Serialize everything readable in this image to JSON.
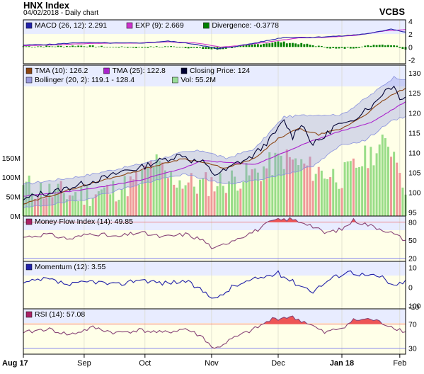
{
  "header": {
    "title": "HNX Index",
    "subtitle": "04/02/2018 - Daily chart",
    "brand": "VCBS"
  },
  "x_axis": {
    "labels": [
      "Aug 17",
      "Sep",
      "Oct",
      "Nov",
      "Dec",
      "Jan 18",
      "Feb"
    ],
    "label_index": [
      0,
      21,
      42,
      65,
      88,
      110,
      130
    ]
  },
  "chart_data": [
    {
      "type": "line",
      "name": "macd-panel",
      "legend": [
        {
          "text": "MACD (26, 12): 2.291",
          "color": "#2222aa"
        },
        {
          "text": "EXP (9): 2.669",
          "color": "#cc33cc"
        },
        {
          "text": "Divergence: -0.3778",
          "color": "#008000"
        }
      ],
      "ylim": [
        -2.6,
        4.2
      ],
      "yticks": [
        "4",
        "2",
        "0",
        "-2"
      ],
      "ytick_values": [
        4,
        2,
        0,
        -2
      ],
      "key_points_macd": [
        [
          0,
          0.3
        ],
        [
          10,
          0.4
        ],
        [
          20,
          0.7
        ],
        [
          30,
          0.6
        ],
        [
          40,
          0.6
        ],
        [
          50,
          0.9
        ],
        [
          60,
          0.4
        ],
        [
          67,
          -0.3
        ],
        [
          72,
          0.0
        ],
        [
          80,
          0.6
        ],
        [
          90,
          1.5
        ],
        [
          100,
          1.5
        ],
        [
          110,
          1.7
        ],
        [
          120,
          2.1
        ],
        [
          127,
          2.8
        ],
        [
          132,
          2.3
        ]
      ],
      "key_points_signal": [
        [
          0,
          0.2
        ],
        [
          10,
          0.3
        ],
        [
          20,
          0.5
        ],
        [
          30,
          0.6
        ],
        [
          40,
          0.6
        ],
        [
          50,
          0.8
        ],
        [
          60,
          0.6
        ],
        [
          68,
          0.0
        ],
        [
          75,
          0.2
        ],
        [
          85,
          0.8
        ],
        [
          95,
          1.4
        ],
        [
          105,
          1.5
        ],
        [
          115,
          1.8
        ],
        [
          125,
          2.5
        ],
        [
          132,
          2.7
        ]
      ],
      "key_points_divergence": [
        [
          0,
          0.1
        ],
        [
          10,
          0.1
        ],
        [
          20,
          0.2
        ],
        [
          30,
          0.0
        ],
        [
          40,
          -0.1
        ],
        [
          50,
          0.1
        ],
        [
          60,
          -0.2
        ],
        [
          67,
          -0.4
        ],
        [
          75,
          0.1
        ],
        [
          88,
          0.8
        ],
        [
          98,
          0.4
        ],
        [
          108,
          -0.3
        ],
        [
          115,
          -0.1
        ],
        [
          122,
          0.4
        ],
        [
          128,
          0.3
        ],
        [
          132,
          -0.4
        ]
      ]
    },
    {
      "type": "line",
      "name": "price-panel",
      "legend": [
        {
          "text": "TMA (10): 126.2",
          "color": "#8b4513"
        },
        {
          "text": "TMA (25): 122.8",
          "color": "#aa22cc"
        },
        {
          "text": "Closing Price: 124",
          "color": "#000033"
        },
        {
          "text": "Bollinger (20, 2): 119.1 - 128.4",
          "color": "#9999dd"
        },
        {
          "text": "Vol: 55.2M",
          "color": "#99dd99"
        }
      ],
      "ylim": [
        94,
        132
      ],
      "yticks": [
        "130",
        "125",
        "120",
        "115",
        "110",
        "105",
        "100",
        "95"
      ],
      "ytick_values": [
        130,
        125,
        120,
        115,
        110,
        105,
        100,
        95
      ],
      "vol_ticks": [
        "150M",
        "100M",
        "50M",
        "0M"
      ],
      "vol_tick_values": [
        150,
        100,
        50,
        0
      ],
      "vol_max": 210,
      "key_points_close": [
        [
          0,
          98
        ],
        [
          5,
          99.5
        ],
        [
          10,
          100
        ],
        [
          15,
          101
        ],
        [
          20,
          102
        ],
        [
          25,
          103
        ],
        [
          30,
          104
        ],
        [
          35,
          105.5
        ],
        [
          40,
          106
        ],
        [
          45,
          107.5
        ],
        [
          50,
          108.5
        ],
        [
          55,
          109.5
        ],
        [
          58,
          108
        ],
        [
          62,
          107.5
        ],
        [
          66,
          104.5
        ],
        [
          70,
          105.5
        ],
        [
          74,
          107.5
        ],
        [
          78,
          108.5
        ],
        [
          82,
          111
        ],
        [
          86,
          114
        ],
        [
          90,
          118
        ],
        [
          93,
          114
        ],
        [
          96,
          117.5
        ],
        [
          100,
          112
        ],
        [
          104,
          114
        ],
        [
          108,
          117
        ],
        [
          112,
          117
        ],
        [
          115,
          119
        ],
        [
          118,
          121
        ],
        [
          121,
          122
        ],
        [
          124,
          125
        ],
        [
          126,
          126.5
        ],
        [
          128,
          126.5
        ],
        [
          130,
          124
        ],
        [
          132,
          124
        ]
      ],
      "key_points_tma10": [
        [
          0,
          97
        ],
        [
          20,
          101.5
        ],
        [
          40,
          105.5
        ],
        [
          55,
          108.5
        ],
        [
          62,
          107.5
        ],
        [
          70,
          106
        ],
        [
          80,
          108.5
        ],
        [
          88,
          113.5
        ],
        [
          95,
          116
        ],
        [
          102,
          114.5
        ],
        [
          110,
          116
        ],
        [
          118,
          119.5
        ],
        [
          126,
          124
        ],
        [
          132,
          126.2
        ]
      ],
      "key_points_tma25": [
        [
          0,
          99
        ],
        [
          20,
          100.5
        ],
        [
          40,
          103
        ],
        [
          55,
          106
        ],
        [
          62,
          108
        ],
        [
          70,
          107.5
        ],
        [
          80,
          107
        ],
        [
          90,
          110
        ],
        [
          100,
          113
        ],
        [
          110,
          115.5
        ],
        [
          120,
          117.5
        ],
        [
          132,
          122.8
        ]
      ],
      "key_points_boll_upper": [
        [
          0,
          102
        ],
        [
          20,
          104
        ],
        [
          40,
          107
        ],
        [
          55,
          110
        ],
        [
          62,
          110.5
        ],
        [
          70,
          108.5
        ],
        [
          80,
          111
        ],
        [
          90,
          119
        ],
        [
          100,
          119.5
        ],
        [
          110,
          119.5
        ],
        [
          120,
          124.5
        ],
        [
          128,
          129
        ],
        [
          132,
          128.4
        ]
      ],
      "key_points_boll_lower": [
        [
          0,
          96
        ],
        [
          20,
          98
        ],
        [
          40,
          102
        ],
        [
          55,
          104.5
        ],
        [
          62,
          103.5
        ],
        [
          70,
          102
        ],
        [
          80,
          103
        ],
        [
          90,
          104.5
        ],
        [
          100,
          106.5
        ],
        [
          110,
          112
        ],
        [
          118,
          113
        ],
        [
          126,
          117.5
        ],
        [
          132,
          119.1
        ]
      ],
      "key_points_volume": [
        [
          0,
          80
        ],
        [
          10,
          60
        ],
        [
          20,
          55
        ],
        [
          30,
          65
        ],
        [
          40,
          90
        ],
        [
          45,
          140
        ],
        [
          50,
          100
        ],
        [
          60,
          80
        ],
        [
          70,
          90
        ],
        [
          80,
          110
        ],
        [
          90,
          150
        ],
        [
          100,
          120
        ],
        [
          110,
          100
        ],
        [
          120,
          160
        ],
        [
          126,
          190
        ],
        [
          130,
          140
        ],
        [
          132,
          55.2
        ]
      ]
    },
    {
      "type": "line",
      "name": "mfi-panel",
      "legend": [
        {
          "text": "Money Flow Index (14): 49.85",
          "color": "#aa2266"
        }
      ],
      "ylim": [
        15,
        90
      ],
      "yticks": [
        "80",
        "50",
        "20"
      ],
      "ytick_values": [
        80,
        50,
        20
      ],
      "bands": [
        80,
        20
      ],
      "key_points": [
        [
          0,
          55
        ],
        [
          8,
          60
        ],
        [
          16,
          52
        ],
        [
          24,
          62
        ],
        [
          32,
          55
        ],
        [
          40,
          63
        ],
        [
          48,
          55
        ],
        [
          56,
          60
        ],
        [
          62,
          50
        ],
        [
          66,
          35
        ],
        [
          72,
          50
        ],
        [
          80,
          65
        ],
        [
          86,
          82
        ],
        [
          92,
          85
        ],
        [
          98,
          78
        ],
        [
          104,
          62
        ],
        [
          110,
          68
        ],
        [
          114,
          83
        ],
        [
          120,
          74
        ],
        [
          126,
          65
        ],
        [
          132,
          49.85
        ]
      ]
    },
    {
      "type": "line",
      "name": "momentum-panel",
      "legend": [
        {
          "text": "Momentum (12): 3.55",
          "color": "#2222aa"
        }
      ],
      "ylim": [
        -11,
        13
      ],
      "yticks": [
        "10",
        "0",
        "-10"
      ],
      "ytick_values": [
        10,
        0,
        -10
      ],
      "key_points": [
        [
          0,
          2
        ],
        [
          8,
          4
        ],
        [
          16,
          1
        ],
        [
          24,
          3
        ],
        [
          32,
          1
        ],
        [
          40,
          4
        ],
        [
          48,
          2
        ],
        [
          56,
          3
        ],
        [
          62,
          -2
        ],
        [
          67,
          -6
        ],
        [
          72,
          0
        ],
        [
          80,
          4
        ],
        [
          88,
          7
        ],
        [
          94,
          2
        ],
        [
          100,
          -2
        ],
        [
          106,
          4
        ],
        [
          112,
          8
        ],
        [
          118,
          6
        ],
        [
          124,
          5
        ],
        [
          128,
          0
        ],
        [
          132,
          3.55
        ]
      ]
    },
    {
      "type": "line",
      "name": "rsi-panel",
      "legend": [
        {
          "text": "RSI (14): 57.08",
          "color": "#aa2266"
        }
      ],
      "ylim": [
        20,
        95
      ],
      "yticks": [
        "100",
        "70",
        "30"
      ],
      "ytick_values": [
        100,
        70,
        30
      ],
      "bands": [
        70,
        30
      ],
      "key_points": [
        [
          0,
          55
        ],
        [
          8,
          62
        ],
        [
          16,
          52
        ],
        [
          24,
          64
        ],
        [
          32,
          55
        ],
        [
          40,
          60
        ],
        [
          48,
          55
        ],
        [
          56,
          62
        ],
        [
          62,
          48
        ],
        [
          66,
          28
        ],
        [
          72,
          45
        ],
        [
          80,
          62
        ],
        [
          86,
          78
        ],
        [
          92,
          82
        ],
        [
          98,
          72
        ],
        [
          104,
          55
        ],
        [
          110,
          64
        ],
        [
          114,
          76
        ],
        [
          120,
          78
        ],
        [
          126,
          68
        ],
        [
          132,
          57.08
        ]
      ]
    }
  ]
}
